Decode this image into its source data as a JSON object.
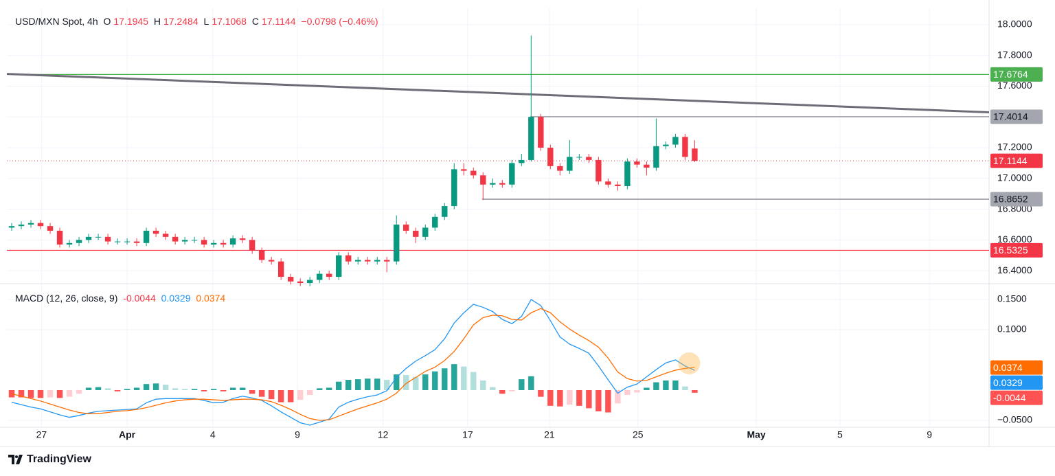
{
  "chart_data": [
    {
      "type": "candlestick",
      "title": "USD/MXN Spot, 4h",
      "ohlc_keys": [
        "O",
        "H",
        "L",
        "C"
      ],
      "change": "−0.0798 (−0.46%)",
      "xlim": [
        -0.5,
        101.6
      ],
      "xticks": [
        {
          "value": 3.1,
          "label": "27"
        },
        {
          "value": 12.0,
          "label": "Apr"
        },
        {
          "value": 20.9,
          "label": "4"
        },
        {
          "value": 29.7,
          "label": "9"
        },
        {
          "value": 38.6,
          "label": "12"
        },
        {
          "value": 47.4,
          "label": "17"
        },
        {
          "value": 55.9,
          "label": "21"
        },
        {
          "value": 65.1,
          "label": "25"
        },
        {
          "value": 77.4,
          "label": "May"
        },
        {
          "value": 86.1,
          "label": "5"
        },
        {
          "value": 95.4,
          "label": "9"
        }
      ],
      "ylim": [
        16.32,
        18.107
      ],
      "yticks": [
        {
          "value": 16.4,
          "label": "16.4000"
        },
        {
          "value": 16.6,
          "label": "16.6000"
        },
        {
          "value": 16.8,
          "label": "16.8000"
        },
        {
          "value": 17.0,
          "label": "17.0000"
        },
        {
          "value": 17.2,
          "label": "17.2000"
        },
        {
          "value": 17.4,
          "label": "17.4000"
        },
        {
          "value": 17.6,
          "label": "17.6000"
        },
        {
          "value": 17.8,
          "label": "17.8000"
        },
        {
          "value": 18.0,
          "label": "18.0000"
        }
      ],
      "grid": true,
      "colors": {
        "up": "#089981",
        "down": "#f23645"
      },
      "candles": {
        "open": [
          16.68,
          16.69,
          16.7,
          16.71,
          16.69,
          16.66,
          16.57,
          16.58,
          16.6,
          16.62,
          16.62,
          16.59,
          16.59,
          16.59,
          16.58,
          16.66,
          16.64,
          16.62,
          16.59,
          16.6,
          16.6,
          16.57,
          16.58,
          16.57,
          16.61,
          16.6,
          16.53,
          16.47,
          16.46,
          16.36,
          16.33,
          16.32,
          16.34,
          16.38,
          16.36,
          16.5,
          16.46,
          16.47,
          16.46,
          16.47,
          16.46,
          16.7,
          16.66,
          16.62,
          16.68,
          16.75,
          16.82,
          17.06,
          17.05,
          17.02,
          16.96,
          16.97,
          16.96,
          17.1,
          17.12,
          17.4,
          17.2,
          17.08,
          17.05,
          17.14,
          17.14,
          17.12,
          16.98,
          16.96,
          16.95,
          17.11,
          17.09,
          17.07,
          17.21,
          17.22,
          17.27,
          17.1945
        ],
        "high": [
          16.71,
          16.72,
          16.73,
          16.73,
          16.71,
          16.68,
          16.6,
          16.62,
          16.64,
          16.64,
          16.64,
          16.61,
          16.61,
          16.61,
          16.68,
          16.68,
          16.66,
          16.64,
          16.62,
          16.62,
          16.62,
          16.6,
          16.6,
          16.63,
          16.63,
          16.62,
          16.55,
          16.49,
          16.48,
          16.38,
          16.35,
          16.36,
          16.4,
          16.4,
          16.52,
          16.52,
          16.49,
          16.49,
          16.49,
          16.49,
          16.76,
          16.72,
          16.68,
          16.7,
          16.77,
          16.84,
          17.1,
          17.1,
          17.07,
          17.04,
          17.0,
          16.99,
          17.12,
          17.16,
          17.93,
          17.42,
          17.22,
          17.1,
          17.25,
          17.16,
          17.16,
          17.14,
          17.0,
          16.98,
          17.13,
          17.13,
          17.11,
          17.39,
          17.24,
          17.29,
          17.29,
          17.2484
        ],
        "low": [
          16.66,
          16.67,
          16.68,
          16.67,
          16.64,
          16.55,
          16.55,
          16.56,
          16.58,
          16.6,
          16.57,
          16.57,
          16.57,
          16.56,
          16.56,
          16.62,
          16.6,
          16.57,
          16.57,
          16.58,
          16.55,
          16.55,
          16.55,
          16.55,
          16.58,
          16.51,
          16.45,
          16.44,
          16.34,
          16.31,
          16.3,
          16.3,
          16.32,
          16.34,
          16.34,
          16.44,
          16.44,
          16.44,
          16.44,
          16.39,
          16.44,
          16.64,
          16.58,
          16.6,
          16.66,
          16.73,
          16.8,
          17.02,
          17.0,
          16.86,
          16.94,
          16.94,
          16.94,
          17.08,
          17.11,
          17.18,
          17.06,
          17.02,
          17.03,
          17.12,
          17.1,
          16.96,
          16.94,
          16.92,
          16.93,
          17.07,
          17.02,
          17.05,
          17.19,
          17.2,
          17.12,
          17.1068
        ],
        "close": [
          16.69,
          16.7,
          16.71,
          16.69,
          16.66,
          16.57,
          16.58,
          16.6,
          16.62,
          16.62,
          16.59,
          16.59,
          16.59,
          16.58,
          16.66,
          16.64,
          16.62,
          16.59,
          16.6,
          16.6,
          16.57,
          16.58,
          16.57,
          16.61,
          16.6,
          16.53,
          16.47,
          16.46,
          16.36,
          16.33,
          16.32,
          16.34,
          16.38,
          16.36,
          16.5,
          16.46,
          16.47,
          16.46,
          16.47,
          16.46,
          16.7,
          16.66,
          16.62,
          16.68,
          16.75,
          16.82,
          17.06,
          17.05,
          17.02,
          16.96,
          16.97,
          16.96,
          17.1,
          17.12,
          17.4,
          17.2,
          17.08,
          17.05,
          17.14,
          17.14,
          17.12,
          16.98,
          16.96,
          16.95,
          17.11,
          17.09,
          17.07,
          17.21,
          17.22,
          17.27,
          17.14,
          17.1144
        ]
      },
      "levels": [
        {
          "value": 17.6764,
          "color": "#4caf50",
          "label_color": "#4caf50",
          "text_color": "#ffffff"
        },
        {
          "value": 17.4014,
          "color": "#787b86",
          "label_color": "#a3a6af",
          "text_color": "#131722",
          "start": 53.9
        },
        {
          "value": 16.8652,
          "color": "#787b86",
          "label_color": "#a3a6af",
          "text_color": "#131722",
          "start": 48.9
        },
        {
          "value": 16.5325,
          "color": "#f23645",
          "label_color": "#f23645",
          "text_color": "#ffffff"
        }
      ],
      "trendline": {
        "x": [
          -0.5,
          101.6
        ],
        "y": [
          17.68,
          17.43
        ],
        "color": "#6f6c78"
      },
      "last_price_color": "#f23645"
    },
    {
      "type": "macd",
      "title": "MACD (12, 26, close, 9)",
      "ylim": [
        -0.0614,
        0.175
      ],
      "yticks": [
        {
          "value": -0.05,
          "label": "−0.0500"
        },
        {
          "value": 0.1,
          "label": "0.1000"
        },
        {
          "value": 0.15,
          "label": "0.1500"
        }
      ],
      "histogram": {
        "colors": {
          "up_rising": "#26a69a",
          "up_falling": "#b2dfdb",
          "down_falling": "#ff5252",
          "down_rising": "#ffcdd2"
        },
        "values": [
          -0.012,
          -0.012,
          -0.013,
          -0.013,
          -0.012,
          -0.013,
          -0.011,
          -0.006,
          0.004,
          0.005,
          0.003,
          -0.002,
          0.002,
          0.004,
          0.01,
          0.011,
          0.009,
          0.003,
          0.002,
          0.002,
          -0.002,
          0.002,
          -0.002,
          0.004,
          0.004,
          -0.006,
          -0.011,
          -0.015,
          -0.02,
          -0.02,
          -0.016,
          -0.008,
          0.003,
          0.004,
          0.014,
          0.017,
          0.018,
          0.019,
          0.019,
          0.017,
          0.026,
          0.025,
          0.022,
          0.026,
          0.031,
          0.036,
          0.043,
          0.039,
          0.03,
          0.016,
          0.005,
          -0.006,
          -0.002,
          0.018,
          0.023,
          -0.011,
          -0.026,
          -0.027,
          -0.024,
          -0.026,
          -0.03,
          -0.035,
          -0.037,
          -0.022,
          -0.008,
          -0.004,
          0.004,
          0.013,
          0.016,
          0.016,
          0.006,
          -0.0044
        ]
      },
      "series": [
        {
          "color": "#2196f3",
          "values": [
            -0.02,
            -0.024,
            -0.028,
            -0.031,
            -0.036,
            -0.041,
            -0.045,
            -0.042,
            -0.038,
            -0.035,
            -0.034,
            -0.033,
            -0.032,
            -0.031,
            -0.021,
            -0.015,
            -0.014,
            -0.014,
            -0.014,
            -0.014,
            -0.017,
            -0.021,
            -0.02,
            -0.014,
            -0.01,
            -0.013,
            -0.017,
            -0.026,
            -0.036,
            -0.045,
            -0.054,
            -0.058,
            -0.053,
            -0.048,
            -0.028,
            -0.02,
            -0.015,
            -0.011,
            -0.008,
            -0.001,
            0.021,
            0.036,
            0.048,
            0.057,
            0.067,
            0.085,
            0.111,
            0.128,
            0.142,
            0.137,
            0.13,
            0.117,
            0.11,
            0.122,
            0.15,
            0.14,
            0.115,
            0.088,
            0.076,
            0.069,
            0.061,
            0.04,
            0.017,
            -0.005,
            0.005,
            0.01,
            0.022,
            0.034,
            0.045,
            0.05,
            0.04,
            0.0329
          ]
        },
        {
          "color": "#ff6d00",
          "values": [
            -0.006,
            -0.01,
            -0.014,
            -0.018,
            -0.023,
            -0.028,
            -0.033,
            -0.037,
            -0.039,
            -0.039,
            -0.037,
            -0.035,
            -0.034,
            -0.032,
            -0.029,
            -0.025,
            -0.021,
            -0.018,
            -0.016,
            -0.015,
            -0.015,
            -0.016,
            -0.017,
            -0.016,
            -0.015,
            -0.015,
            -0.016,
            -0.019,
            -0.025,
            -0.032,
            -0.04,
            -0.047,
            -0.05,
            -0.049,
            -0.043,
            -0.037,
            -0.031,
            -0.026,
            -0.021,
            -0.015,
            -0.005,
            0.011,
            0.021,
            0.031,
            0.038,
            0.049,
            0.064,
            0.085,
            0.108,
            0.12,
            0.124,
            0.123,
            0.117,
            0.116,
            0.128,
            0.135,
            0.128,
            0.113,
            0.101,
            0.091,
            0.082,
            0.071,
            0.053,
            0.03,
            0.019,
            0.015,
            0.016,
            0.022,
            0.028,
            0.033,
            0.036,
            0.0374
          ]
        }
      ]
    }
  ],
  "brand": "TradingView"
}
